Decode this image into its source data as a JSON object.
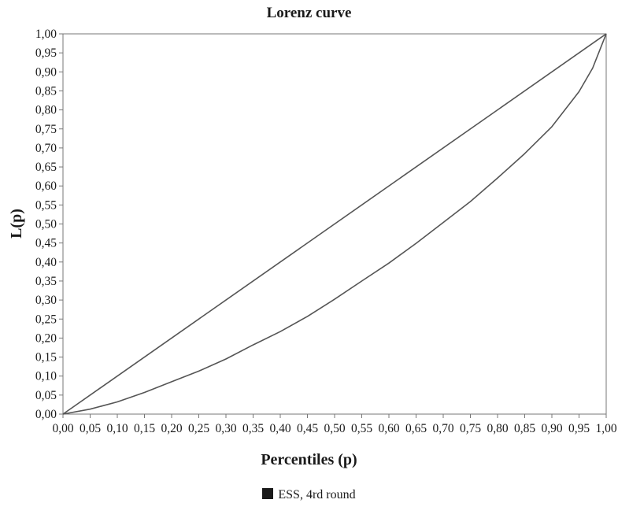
{
  "chart_data": {
    "type": "line",
    "title": "Lorenz curve",
    "xlabel": "Percentiles (p)",
    "ylabel": "L(p)",
    "xlim": [
      0,
      1
    ],
    "ylim": [
      0,
      1
    ],
    "grid": false,
    "legend_position": "bottom",
    "x_tick_labels": [
      "0,00",
      "0,05",
      "0,10",
      "0,15",
      "0,20",
      "0,25",
      "0,30",
      "0,35",
      "0,40",
      "0,45",
      "0,50",
      "0,55",
      "0,60",
      "0,65",
      "0,70",
      "0,75",
      "0,80",
      "0,85",
      "0,90",
      "0,95",
      "1,00"
    ],
    "y_tick_labels": [
      "0,00",
      "0,05",
      "0,10",
      "0,15",
      "0,20",
      "0,25",
      "0,30",
      "0,35",
      "0,40",
      "0,45",
      "0,50",
      "0,55",
      "0,60",
      "0,65",
      "0,70",
      "0,75",
      "0,80",
      "0,85",
      "0,90",
      "0,95",
      "1,00"
    ],
    "series": [
      {
        "x": [
          0,
          1
        ],
        "y": [
          0,
          1
        ],
        "color": "#555555"
      },
      {
        "name": "ESS, 4rd round",
        "x": [
          0,
          0.05,
          0.1,
          0.15,
          0.2,
          0.25,
          0.3,
          0.35,
          0.4,
          0.45,
          0.5,
          0.55,
          0.6,
          0.65,
          0.7,
          0.75,
          0.8,
          0.85,
          0.9,
          0.95,
          0.975,
          1.0
        ],
        "y": [
          0,
          0.013,
          0.032,
          0.057,
          0.085,
          0.113,
          0.145,
          0.182,
          0.217,
          0.257,
          0.302,
          0.35,
          0.397,
          0.449,
          0.504,
          0.559,
          0.621,
          0.685,
          0.756,
          0.848,
          0.91,
          1.0
        ],
        "color": "#555555"
      }
    ]
  }
}
